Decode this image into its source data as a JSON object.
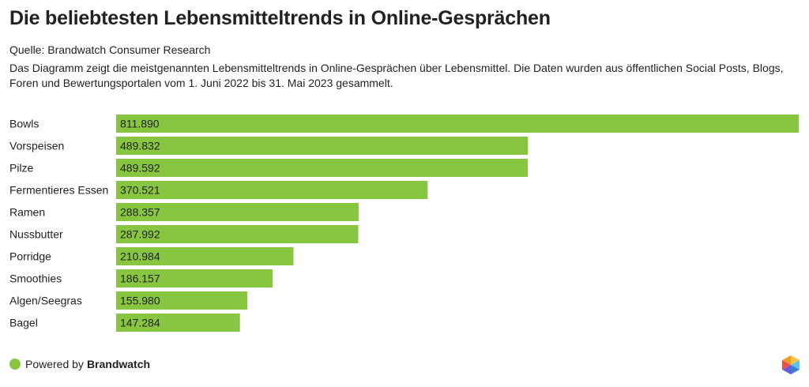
{
  "title": "Die beliebtesten Lebensmitteltrends in Online-Gesprächen",
  "source": "Quelle: Brandwatch Consumer Research",
  "description": "Das Diagramm zeigt die meistgenannten Lebensmitteltrends in Online-Gesprächen über Lebensmittel. Die Daten wurden aus öffentlichen Social Posts, Blogs, Foren und Bewertungsportalen vom 1. Juni 2022 bis 31. Mai 2023 gesammelt.",
  "footer": {
    "prefix": "Powered by",
    "brand": "Brandwatch",
    "icon": "brandwatch-logo-icon"
  },
  "colors": {
    "bar": "#88c540",
    "text": "#222222"
  },
  "chart_data": {
    "type": "bar",
    "orientation": "horizontal",
    "categories": [
      "Bowls",
      "Vorspeisen",
      "Pilze",
      "Fermentieres Essen",
      "Ramen",
      "Nussbutter",
      "Porridge",
      "Smoothies",
      "Algen/Seegras",
      "Bagel"
    ],
    "values": [
      811890,
      489832,
      489592,
      370521,
      288357,
      287992,
      210984,
      186157,
      155980,
      147284
    ],
    "value_labels": [
      "811.890",
      "489.832",
      "489.592",
      "370.521",
      "288.357",
      "287.992",
      "210.984",
      "186.157",
      "155.980",
      "147.284"
    ],
    "xlim": [
      0,
      811890
    ],
    "title": "Die beliebtesten Lebensmitteltrends in Online-Gesprächen",
    "xlabel": "",
    "ylabel": "",
    "grid": false,
    "legend": "none"
  }
}
